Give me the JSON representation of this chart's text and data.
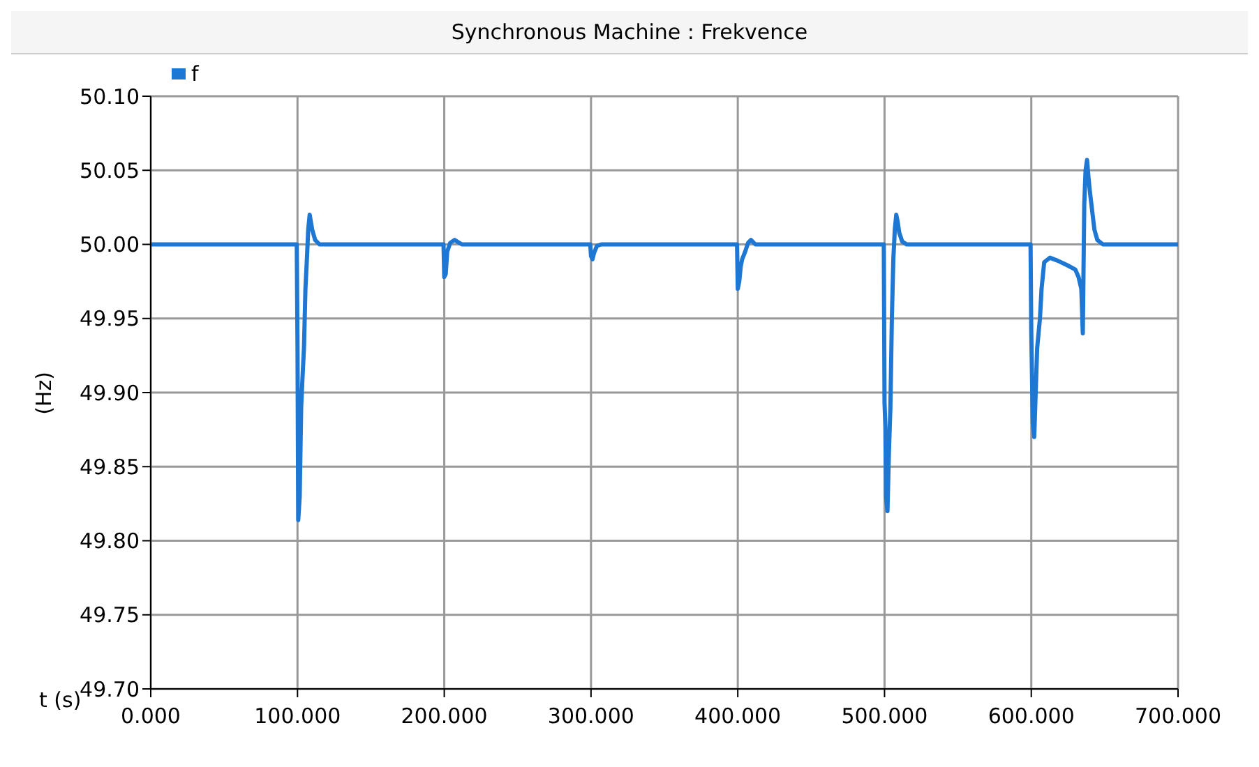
{
  "chart_data": {
    "type": "line",
    "title": "Synchronous Machine : Frekvence",
    "xlabel": "t (s)",
    "ylabel": "(Hz)",
    "x": [
      0,
      99.5,
      100,
      100.5,
      101.5,
      102.5,
      103.4,
      104.4,
      105.4,
      106.4,
      107.3,
      108.3,
      110,
      112,
      115,
      199.5,
      200,
      201,
      202,
      204,
      207,
      212,
      299.5,
      300,
      301,
      302,
      304,
      307,
      399.5,
      400,
      401,
      402,
      403,
      405,
      407,
      409,
      412,
      499.5,
      500,
      500.6,
      501,
      502,
      503,
      504,
      505,
      506,
      507,
      508,
      509,
      510,
      512,
      515,
      520,
      599.5,
      600,
      601,
      602,
      603,
      604,
      605.9,
      607,
      608.8,
      612.7,
      618,
      624.4,
      630,
      632.2,
      634.1,
      635.1,
      636.1,
      637,
      638,
      639,
      640,
      643,
      645,
      648.8,
      700
    ],
    "series": [
      {
        "name": "f",
        "color": "#1f77d4",
        "values": [
          50,
          50,
          49.932,
          49.814,
          49.83,
          49.89,
          49.91,
          49.93,
          49.97,
          49.99,
          50.01,
          50.02,
          50.01,
          50.003,
          50,
          50,
          49.978,
          49.98,
          49.995,
          50.001,
          50.003,
          50,
          50,
          49.992,
          49.99,
          49.994,
          49.999,
          50,
          50,
          49.97,
          49.975,
          49.985,
          49.99,
          49.995,
          50.001,
          50.003,
          50,
          50,
          49.893,
          49.877,
          49.83,
          49.82,
          49.86,
          49.89,
          49.95,
          49.99,
          50.01,
          50.02,
          50.015,
          50.008,
          50.002,
          50,
          50,
          50,
          49.94,
          49.88,
          49.87,
          49.9,
          49.93,
          49.95,
          49.97,
          49.988,
          49.991,
          49.989,
          49.986,
          49.983,
          49.978,
          49.97,
          49.94,
          50.027,
          50.05,
          50.057,
          50.045,
          50.035,
          50.01,
          50.003,
          50,
          50
        ]
      }
    ],
    "xlim": [
      0,
      700
    ],
    "ylim": [
      49.7,
      50.1
    ],
    "xticks": [
      {
        "value": 0,
        "label": "0.000"
      },
      {
        "value": 100,
        "label": "100.000"
      },
      {
        "value": 200,
        "label": "200.000"
      },
      {
        "value": 300,
        "label": "300.000"
      },
      {
        "value": 400,
        "label": "400.000"
      },
      {
        "value": 500,
        "label": "500.000"
      },
      {
        "value": 600,
        "label": "600.000"
      },
      {
        "value": 700,
        "label": "700.000"
      }
    ],
    "yticks": [
      {
        "value": 49.7,
        "label": "49.70"
      },
      {
        "value": 49.75,
        "label": "49.75"
      },
      {
        "value": 49.8,
        "label": "49.80"
      },
      {
        "value": 49.85,
        "label": "49.85"
      },
      {
        "value": 49.9,
        "label": "49.90"
      },
      {
        "value": 49.95,
        "label": "49.95"
      },
      {
        "value": 50,
        "label": "50.00"
      },
      {
        "value": 50.05,
        "label": "50.05"
      },
      {
        "value": 50.1,
        "label": "50.10"
      }
    ],
    "grid": true,
    "legend": "top left",
    "marker": "none",
    "line_style": "solid"
  }
}
